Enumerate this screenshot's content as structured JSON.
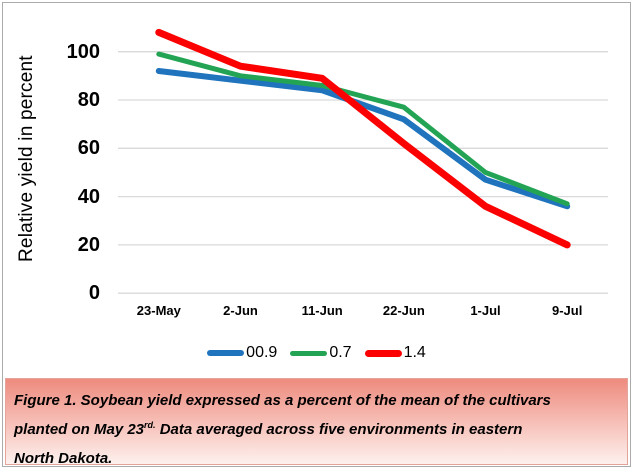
{
  "window": {
    "background": "#FFFFFF",
    "border_color": "#ABABAB"
  },
  "chart_data": {
    "type": "line",
    "title": "",
    "xlabel": "",
    "ylabel": "Relative yield in percent",
    "categories": [
      "23-May",
      "2-Jun",
      "11-Jun",
      "22-Jun",
      "1-Jul",
      "9-Jul"
    ],
    "series": [
      {
        "name": "00.9",
        "color": "#1F74BD",
        "stroke_width": 6,
        "swatch_height": 6,
        "values": [
          92,
          88,
          84,
          72,
          47,
          36
        ]
      },
      {
        "name": "0.7",
        "color": "#23A455",
        "stroke_width": 5,
        "swatch_height": 5,
        "values": [
          99,
          90,
          86,
          77,
          50,
          37
        ]
      },
      {
        "name": "1.4",
        "color": "#FC0101",
        "stroke_width": 7,
        "swatch_height": 7,
        "values": [
          108,
          94,
          89,
          62,
          36,
          20
        ]
      }
    ],
    "ylim": [
      0,
      117
    ],
    "yticks": [
      0,
      20,
      40,
      60,
      80,
      100
    ],
    "grid": "horizontal",
    "gridline_color": "#D9D9D9",
    "legend_position": "bottom"
  },
  "caption": {
    "line1": "Figure 1. Soybean yield expressed as a percent of the mean of the cultivars",
    "line2_pre": "planted on May 23",
    "line2_sup": "rd.",
    "line2_post": " Data averaged across five environments in eastern",
    "line3": "North Dakota.",
    "background_top": "#EE8B7E",
    "background_mid": "#F7C3BB",
    "background_bottom": "#FDF1EE"
  }
}
